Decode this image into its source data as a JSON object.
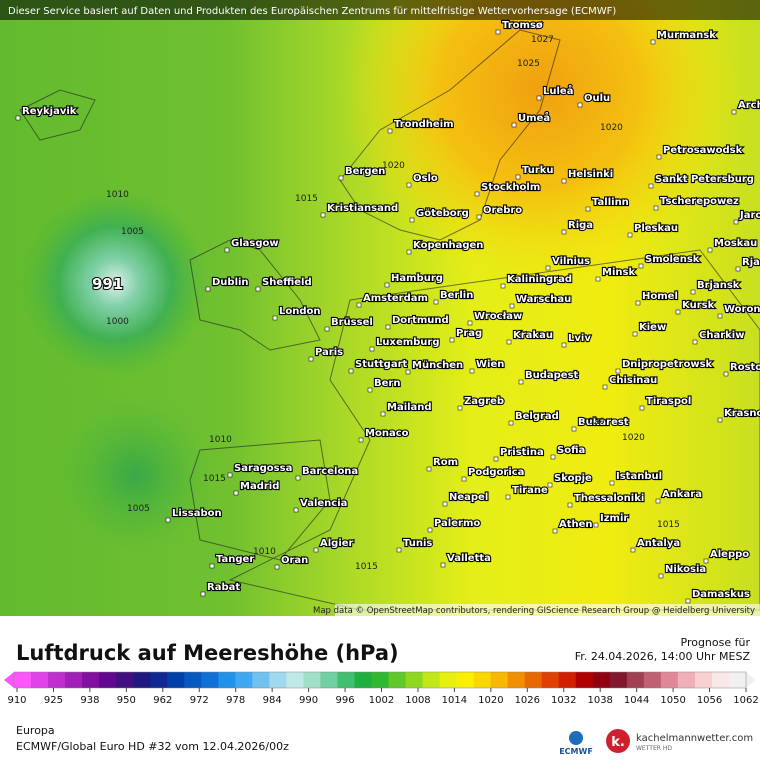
{
  "header": {
    "notice": "Dieser Service basiert auf Daten und Produkten des Europäischen Zentrums für mittelfristige Wettervorhersage (ECMWF)",
    "attribution": "Map data © OpenStreetMap contributors, rendering GIScience Research Group @ Heidelberg University"
  },
  "map": {
    "cities": [
      "Reykjavik",
      "Tromsø",
      "Murmansk",
      "Luleå",
      "Oulu",
      "Umeå",
      "Trondheim",
      "Arch",
      "Petrosawodsk",
      "Turku",
      "Helsinki",
      "Sankt Petersburg",
      "Bergen",
      "Oslo",
      "Stockholm",
      "Tallinn",
      "Tscherepowez",
      "Jaros",
      "Kristiansand",
      "Göteborg",
      "Orebro",
      "Riga",
      "Pleskau",
      "Glasgow",
      "Kopenhagen",
      "Moskau",
      "Vilnius",
      "Minsk",
      "Smolensk",
      "Rja",
      "Dublin",
      "Sheffield",
      "Hamburg",
      "Kaliningrad",
      "Brjansk",
      "Berlin",
      "Amsterdam",
      "Warschau",
      "Homel",
      "London",
      "Kursk",
      "Woronez",
      "Brüssel",
      "Dortmund",
      "Wrocław",
      "Krakau",
      "Kiew",
      "Charkiw",
      "Prag",
      "Luxemburg",
      "Lviv",
      "Paris",
      "Stuttgart",
      "München",
      "Wien",
      "Dnipropetrowsk",
      "Rosto",
      "Budapest",
      "Chisinau",
      "Bern",
      "Tiraspol",
      "Mailand",
      "Zagreb",
      "Krasno",
      "Belgrad",
      "Bukarest",
      "Monaco",
      "Pristina",
      "Sofia",
      "Rom",
      "Istanbul",
      "Saragossa",
      "Barcelona",
      "Podgorica",
      "Skopje",
      "Madrid",
      "Neapel",
      "Tirane",
      "Ankara",
      "Thessaloniki",
      "Valencia",
      "Lissabon",
      "Izmir",
      "Palermo",
      "Athen",
      "Antalya",
      "Aleppo",
      "Algier",
      "Tunis",
      "Valletta",
      "Tanger",
      "Oran",
      "Nikosia",
      "Rabat",
      "Damaskus"
    ],
    "isobar_labels": [
      1027,
      1025,
      1020,
      1015,
      1010,
      1005,
      1000,
      1010,
      1015,
      1005,
      1010,
      1015,
      1020,
      1020,
      1020,
      1015
    ],
    "low_center": 991
  },
  "legend": {
    "title": "Luftdruck auf Meereshöhe (hPa)",
    "forecast_label": "Prognose für",
    "forecast_time": "Fr. 24.04.2026, 14:00 Uhr MESZ",
    "ticks": [
      910,
      925,
      938,
      950,
      962,
      972,
      978,
      984,
      990,
      996,
      1002,
      1008,
      1014,
      1020,
      1026,
      1032,
      1038,
      1044,
      1050,
      1056,
      1062
    ],
    "colors": [
      "#ff55ff",
      "#e040e8",
      "#c030d0",
      "#a020b8",
      "#8010a0",
      "#600890",
      "#401080",
      "#201a80",
      "#102890",
      "#0040a8",
      "#0858c0",
      "#1070d8",
      "#2090e8",
      "#40a8f0",
      "#70c0f0",
      "#a0d8f0",
      "#c0e8e8",
      "#a0e0c8",
      "#70d0a0",
      "#40c070",
      "#20b040",
      "#30b830",
      "#60c828",
      "#90d820",
      "#c0e818",
      "#e8f010",
      "#f8f000",
      "#f8d800",
      "#f8b800",
      "#f09000",
      "#e86800",
      "#e04000",
      "#d02000",
      "#b00000",
      "#900010",
      "#801830",
      "#a04050",
      "#c06070",
      "#e08898",
      "#f0b0b8",
      "#f8d0d0",
      "#f8e8e8",
      "#f0f0f0"
    ]
  },
  "footer": {
    "region": "Europa",
    "model": "ECMWF/Global Euro HD #32 vom  12.04.2026/00z",
    "ecmwf_logo": "ECMWF",
    "brand": "kachelmannwetter.com",
    "brand_sub": "WETTER HD"
  }
}
